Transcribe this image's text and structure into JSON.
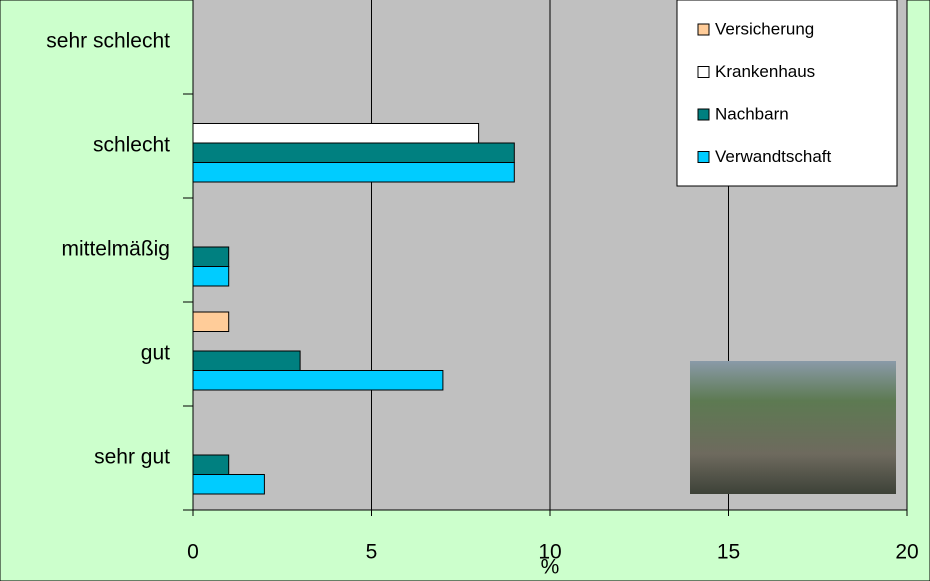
{
  "chart_data": {
    "type": "bar",
    "orientation": "horizontal",
    "categories": [
      "sehr schlecht",
      "schlecht",
      "mittelmäßig",
      "gut",
      "sehr gut"
    ],
    "series": [
      {
        "name": "Versicherung",
        "color": "#ffcc99",
        "values": [
          0,
          0,
          0,
          1,
          0
        ]
      },
      {
        "name": "Krankenhaus",
        "color": "#ffffff",
        "values": [
          0,
          8,
          0,
          0,
          0
        ]
      },
      {
        "name": "Nachbarn",
        "color": "#008080",
        "values": [
          0,
          9,
          1,
          3,
          1
        ]
      },
      {
        "name": "Verwandtschaft",
        "color": "#00ccff",
        "values": [
          0,
          9,
          1,
          7,
          2
        ]
      }
    ],
    "x_label": "%",
    "xlim": [
      0,
      20
    ],
    "xticks": [
      0,
      5,
      10,
      15,
      20
    ],
    "grid": true,
    "legend": "top-right"
  }
}
